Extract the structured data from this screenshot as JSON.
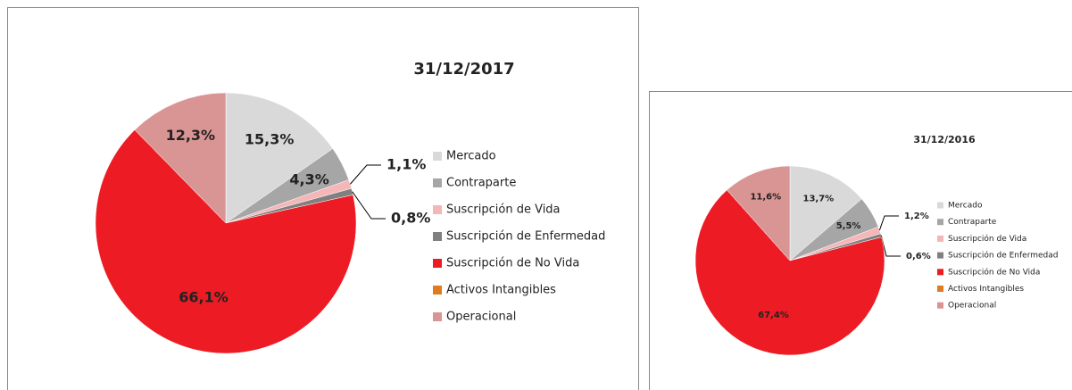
{
  "chart_data": [
    {
      "type": "pie",
      "title": "31/12/2017",
      "categories": [
        "Mercado",
        "Contraparte",
        "Suscripción de Vida",
        "Suscripción de Enfermedad",
        "Suscripción de No Vida",
        "Activos Intangibles",
        "Operacional"
      ],
      "values": [
        15.3,
        4.3,
        1.1,
        0.8,
        66.1,
        0,
        12.3
      ],
      "value_labels": [
        "15,3%",
        "4,3%",
        "1,1%",
        "0,8%",
        "66,1%",
        null,
        "12,3%"
      ],
      "colors": [
        "#d9d9d9",
        "#a6a6a6",
        "#f4b6b6",
        "#808080",
        "#ed1c24",
        "#e07b20",
        "#d99594"
      ],
      "legend": "right"
    },
    {
      "type": "pie",
      "title": "31/12/2016",
      "categories": [
        "Mercado",
        "Contraparte",
        "Suscripción de Vida",
        "Suscripción de Enfermedad",
        "Suscripción de No Vida",
        "Activos Intangibles",
        "Operacional"
      ],
      "values": [
        13.7,
        5.5,
        1.2,
        0.6,
        67.4,
        0,
        11.6
      ],
      "value_labels": [
        "13,7%",
        "5,5%",
        "1,2%",
        "0,6%",
        "67,4%",
        null,
        "11,6%"
      ],
      "colors": [
        "#d9d9d9",
        "#a6a6a6",
        "#f4b6b6",
        "#808080",
        "#ed1c24",
        "#e07b20",
        "#d99594"
      ],
      "legend": "right"
    }
  ]
}
